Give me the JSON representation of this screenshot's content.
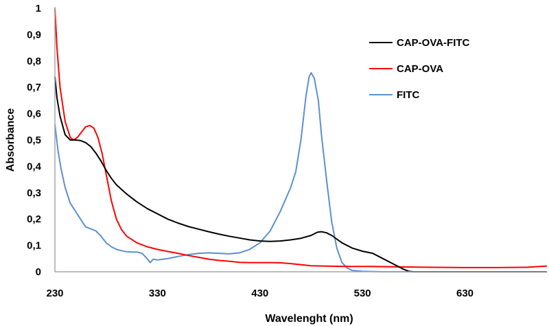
{
  "chart_data": {
    "type": "line",
    "title": "",
    "xlabel": "Wavelenght (nm)",
    "ylabel": "Absorbance",
    "xlim": [
      230,
      710
    ],
    "ylim": [
      0,
      1
    ],
    "x_ticks": [
      230,
      330,
      430,
      530,
      630
    ],
    "x_tick_labels": [
      "230",
      "330",
      "430",
      "530",
      "630"
    ],
    "y_ticks": [
      0,
      0.1,
      0.2,
      0.3,
      0.4,
      0.5,
      0.6,
      0.7,
      0.8,
      0.9,
      1
    ],
    "y_tick_labels": [
      "0",
      "0,1",
      "0,2",
      "0,3",
      "0,4",
      "0,5",
      "0,6",
      "0,7",
      "0,8",
      "0,9",
      "1"
    ],
    "grid": false,
    "legend_position": "top-right",
    "series": [
      {
        "name": "CAP-OVA-FITC",
        "color": "#000000",
        "points": [
          [
            230,
            0.74
          ],
          [
            232,
            0.66
          ],
          [
            235,
            0.59
          ],
          [
            240,
            0.52
          ],
          [
            245,
            0.5
          ],
          [
            250,
            0.5
          ],
          [
            255,
            0.498
          ],
          [
            260,
            0.49
          ],
          [
            265,
            0.475
          ],
          [
            270,
            0.45
          ],
          [
            275,
            0.42
          ],
          [
            280,
            0.385
          ],
          [
            285,
            0.355
          ],
          [
            290,
            0.33
          ],
          [
            300,
            0.295
          ],
          [
            310,
            0.265
          ],
          [
            320,
            0.24
          ],
          [
            330,
            0.22
          ],
          [
            340,
            0.2
          ],
          [
            350,
            0.185
          ],
          [
            360,
            0.172
          ],
          [
            370,
            0.162
          ],
          [
            380,
            0.152
          ],
          [
            390,
            0.143
          ],
          [
            400,
            0.135
          ],
          [
            410,
            0.128
          ],
          [
            420,
            0.121
          ],
          [
            430,
            0.117
          ],
          [
            440,
            0.115
          ],
          [
            450,
            0.117
          ],
          [
            460,
            0.121
          ],
          [
            470,
            0.127
          ],
          [
            480,
            0.138
          ],
          [
            486,
            0.15
          ],
          [
            490,
            0.152
          ],
          [
            495,
            0.148
          ],
          [
            500,
            0.138
          ],
          [
            510,
            0.11
          ],
          [
            520,
            0.09
          ],
          [
            530,
            0.078
          ],
          [
            540,
            0.07
          ],
          [
            550,
            0.05
          ],
          [
            560,
            0.03
          ],
          [
            570,
            0.01
          ],
          [
            575,
            0.002
          ],
          [
            580,
            0
          ],
          [
            710,
            0
          ]
        ]
      },
      {
        "name": "CAP-OVA",
        "color": "#ff0000",
        "points": [
          [
            230,
            1.0
          ],
          [
            232,
            0.85
          ],
          [
            235,
            0.7
          ],
          [
            240,
            0.57
          ],
          [
            245,
            0.51
          ],
          [
            248,
            0.5
          ],
          [
            252,
            0.51
          ],
          [
            256,
            0.53
          ],
          [
            260,
            0.55
          ],
          [
            264,
            0.555
          ],
          [
            268,
            0.545
          ],
          [
            272,
            0.51
          ],
          [
            276,
            0.45
          ],
          [
            280,
            0.37
          ],
          [
            285,
            0.27
          ],
          [
            290,
            0.2
          ],
          [
            295,
            0.16
          ],
          [
            300,
            0.135
          ],
          [
            310,
            0.11
          ],
          [
            320,
            0.095
          ],
          [
            330,
            0.085
          ],
          [
            340,
            0.077
          ],
          [
            350,
            0.07
          ],
          [
            360,
            0.062
          ],
          [
            370,
            0.055
          ],
          [
            380,
            0.048
          ],
          [
            390,
            0.043
          ],
          [
            400,
            0.04
          ],
          [
            410,
            0.036
          ],
          [
            420,
            0.035
          ],
          [
            430,
            0.035
          ],
          [
            440,
            0.035
          ],
          [
            450,
            0.034
          ],
          [
            460,
            0.031
          ],
          [
            470,
            0.027
          ],
          [
            480,
            0.023
          ],
          [
            500,
            0.021
          ],
          [
            520,
            0.02
          ],
          [
            540,
            0.02
          ],
          [
            560,
            0.019
          ],
          [
            580,
            0.018
          ],
          [
            600,
            0.017
          ],
          [
            630,
            0.016
          ],
          [
            660,
            0.016
          ],
          [
            690,
            0.017
          ],
          [
            710,
            0.022
          ]
        ]
      },
      {
        "name": "FITC",
        "color": "#5b8fd0",
        "points": [
          [
            230,
            0.56
          ],
          [
            233,
            0.46
          ],
          [
            236,
            0.39
          ],
          [
            240,
            0.32
          ],
          [
            245,
            0.26
          ],
          [
            250,
            0.23
          ],
          [
            255,
            0.2
          ],
          [
            260,
            0.17
          ],
          [
            265,
            0.163
          ],
          [
            270,
            0.155
          ],
          [
            275,
            0.135
          ],
          [
            280,
            0.11
          ],
          [
            285,
            0.095
          ],
          [
            290,
            0.085
          ],
          [
            295,
            0.08
          ],
          [
            300,
            0.076
          ],
          [
            305,
            0.075
          ],
          [
            310,
            0.075
          ],
          [
            315,
            0.07
          ],
          [
            320,
            0.05
          ],
          [
            323,
            0.035
          ],
          [
            326,
            0.048
          ],
          [
            330,
            0.045
          ],
          [
            340,
            0.05
          ],
          [
            350,
            0.058
          ],
          [
            360,
            0.065
          ],
          [
            370,
            0.07
          ],
          [
            380,
            0.072
          ],
          [
            390,
            0.07
          ],
          [
            400,
            0.068
          ],
          [
            410,
            0.072
          ],
          [
            420,
            0.085
          ],
          [
            430,
            0.11
          ],
          [
            440,
            0.155
          ],
          [
            450,
            0.23
          ],
          [
            460,
            0.32
          ],
          [
            465,
            0.38
          ],
          [
            470,
            0.5
          ],
          [
            475,
            0.67
          ],
          [
            478,
            0.74
          ],
          [
            480,
            0.755
          ],
          [
            483,
            0.735
          ],
          [
            487,
            0.65
          ],
          [
            490,
            0.52
          ],
          [
            495,
            0.35
          ],
          [
            500,
            0.19
          ],
          [
            505,
            0.09
          ],
          [
            510,
            0.035
          ],
          [
            515,
            0.015
          ],
          [
            520,
            0.005
          ],
          [
            530,
            0.002
          ],
          [
            550,
            0
          ],
          [
            710,
            0
          ]
        ]
      }
    ]
  }
}
